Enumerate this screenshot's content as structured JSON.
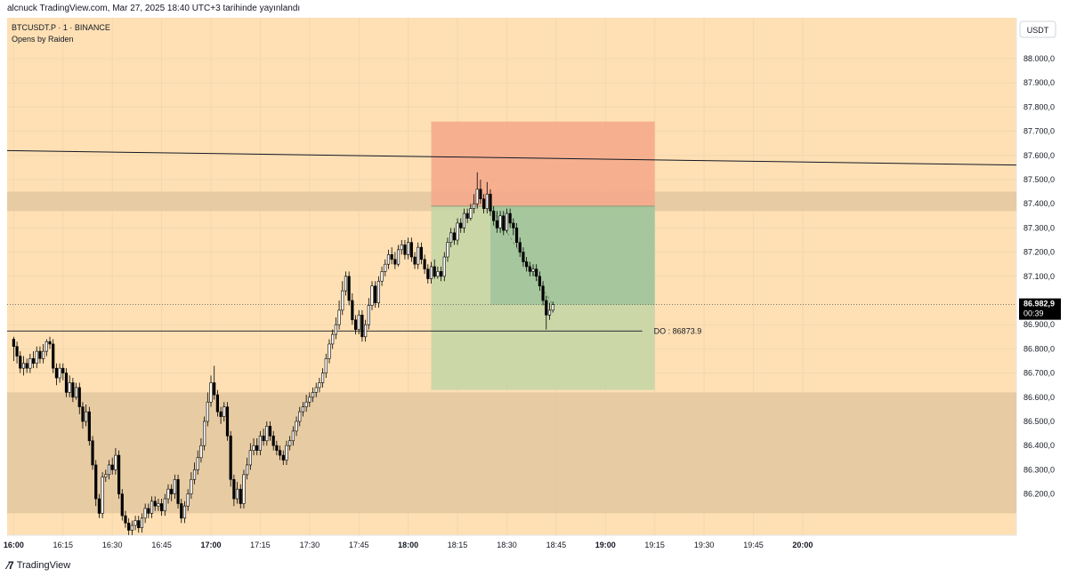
{
  "header": {
    "published": "alcnuck TradingView.com, Mar 27, 2025 18:40 UTC+3 tarihinde yayınlandı"
  },
  "legend": {
    "symbol": "BTCUSDT.P · 1 · BINANCE",
    "indicator": "Opens by Raiden"
  },
  "currency_button": "USDT",
  "footer": {
    "brand": "TradingView"
  },
  "colors": {
    "background": "#fee0b4",
    "zone": "#e4c9a1",
    "stop_zone": "#f4a789",
    "target_zone": "#c3d5a6",
    "target_inner": "#99c29a",
    "bull_body": "#ffffff",
    "bear_body": "#000000",
    "line": "#131722"
  },
  "chart_data": {
    "type": "candlestick",
    "symbol": "BTCUSDT.P",
    "timeframe": "1",
    "exchange": "BINANCE",
    "x_ticks": [
      "16:00",
      "16:15",
      "16:30",
      "16:45",
      "17:00",
      "17:15",
      "17:30",
      "17:45",
      "18:00",
      "18:15",
      "18:30",
      "18:45",
      "19:00",
      "19:15",
      "19:30",
      "19:45",
      "20:00"
    ],
    "y_ticks": [
      "88.000,0",
      "87.900,0",
      "87.800,0",
      "87.700,0",
      "87.600,0",
      "87.500,0",
      "87.400,0",
      "87.300,0",
      "87.200,0",
      "87.100,0",
      "86.900,0",
      "86.800,0",
      "86.700,0",
      "86.600,0",
      "86.500,0",
      "86.400,0",
      "86.300,0",
      "86.200,0"
    ],
    "ylim": [
      86120,
      88080
    ],
    "xlim_minutes": [
      -2,
      305
    ],
    "candles_start_minute": 0,
    "candle_interval_minutes": 1,
    "candles": [
      [
        86840,
        86810,
        86850,
        86750
      ],
      [
        86810,
        86770,
        86830,
        86740
      ],
      [
        86770,
        86720,
        86790,
        86700
      ],
      [
        86720,
        86740,
        86770,
        86690
      ],
      [
        86740,
        86720,
        86760,
        86700
      ],
      [
        86720,
        86760,
        86780,
        86700
      ],
      [
        86760,
        86740,
        86790,
        86720
      ],
      [
        86740,
        86790,
        86810,
        86720
      ],
      [
        86790,
        86760,
        86810,
        86740
      ],
      [
        86760,
        86790,
        86820,
        86740
      ],
      [
        86790,
        86830,
        86840,
        86770
      ],
      [
        86830,
        86820,
        86850,
        86800
      ],
      [
        86820,
        86720,
        86840,
        86700
      ],
      [
        86720,
        86680,
        86740,
        86650
      ],
      [
        86680,
        86720,
        86740,
        86660
      ],
      [
        86720,
        86700,
        86740,
        86670
      ],
      [
        86700,
        86620,
        86720,
        86600
      ],
      [
        86620,
        86660,
        86690,
        86600
      ],
      [
        86660,
        86600,
        86680,
        86580
      ],
      [
        86600,
        86640,
        86660,
        86590
      ],
      [
        86640,
        86560,
        86660,
        86530
      ],
      [
        86560,
        86500,
        86580,
        86470
      ],
      [
        86500,
        86540,
        86570,
        86480
      ],
      [
        86540,
        86420,
        86560,
        86400
      ],
      [
        86420,
        86320,
        86440,
        86300
      ],
      [
        86320,
        86180,
        86340,
        86150
      ],
      [
        86180,
        86120,
        86200,
        86100
      ],
      [
        86120,
        86270,
        86290,
        86100
      ],
      [
        86270,
        86280,
        86300,
        86250
      ],
      [
        86280,
        86320,
        86340,
        86260
      ],
      [
        86320,
        86300,
        86350,
        86280
      ],
      [
        86300,
        86360,
        86390,
        86280
      ],
      [
        86360,
        86200,
        86380,
        86180
      ],
      [
        86200,
        86110,
        86220,
        86090
      ],
      [
        86110,
        86080,
        86130,
        86060
      ],
      [
        86080,
        86050,
        86100,
        86030
      ],
      [
        86050,
        86070,
        86090,
        86030
      ],
      [
        86070,
        86090,
        86110,
        86050
      ],
      [
        86090,
        86060,
        86110,
        86040
      ],
      [
        86060,
        86100,
        86120,
        86040
      ],
      [
        86100,
        86140,
        86160,
        86080
      ],
      [
        86140,
        86120,
        86160,
        86100
      ],
      [
        86120,
        86170,
        86190,
        86100
      ],
      [
        86170,
        86150,
        86190,
        86130
      ],
      [
        86150,
        86160,
        86180,
        86130
      ],
      [
        86160,
        86130,
        86180,
        86110
      ],
      [
        86130,
        86180,
        86200,
        86110
      ],
      [
        86180,
        86220,
        86240,
        86160
      ],
      [
        86220,
        86200,
        86240,
        86170
      ],
      [
        86200,
        86260,
        86280,
        86180
      ],
      [
        86260,
        86160,
        86280,
        86140
      ],
      [
        86160,
        86100,
        86180,
        86080
      ],
      [
        86100,
        86150,
        86170,
        86080
      ],
      [
        86150,
        86200,
        86220,
        86130
      ],
      [
        86200,
        86260,
        86290,
        86180
      ],
      [
        86260,
        86300,
        86330,
        86240
      ],
      [
        86300,
        86350,
        86380,
        86280
      ],
      [
        86350,
        86400,
        86430,
        86330
      ],
      [
        86400,
        86500,
        86520,
        86380
      ],
      [
        86500,
        86580,
        86620,
        86480
      ],
      [
        86580,
        86660,
        86690,
        86560
      ],
      [
        86660,
        86610,
        86730,
        86590
      ],
      [
        86610,
        86540,
        86630,
        86520
      ],
      [
        86540,
        86520,
        86560,
        86490
      ],
      [
        86520,
        86560,
        86580,
        86500
      ],
      [
        86560,
        86440,
        86580,
        86420
      ],
      [
        86440,
        86260,
        86460,
        86230
      ],
      [
        86260,
        86180,
        86280,
        86150
      ],
      [
        86180,
        86220,
        86250,
        86160
      ],
      [
        86220,
        86160,
        86240,
        86140
      ],
      [
        86160,
        86280,
        86300,
        86140
      ],
      [
        86280,
        86320,
        86350,
        86260
      ],
      [
        86320,
        86380,
        86410,
        86300
      ],
      [
        86380,
        86400,
        86430,
        86360
      ],
      [
        86400,
        86380,
        86430,
        86360
      ],
      [
        86380,
        86440,
        86460,
        86360
      ],
      [
        86440,
        86420,
        86470,
        86400
      ],
      [
        86420,
        86480,
        86500,
        86400
      ],
      [
        86480,
        86440,
        86500,
        86420
      ],
      [
        86440,
        86400,
        86460,
        86380
      ],
      [
        86400,
        86380,
        86420,
        86360
      ],
      [
        86380,
        86360,
        86400,
        86340
      ],
      [
        86360,
        86340,
        86380,
        86320
      ],
      [
        86340,
        86400,
        86420,
        86320
      ],
      [
        86400,
        86420,
        86440,
        86380
      ],
      [
        86420,
        86460,
        86480,
        86400
      ],
      [
        86460,
        86500,
        86520,
        86440
      ],
      [
        86500,
        86540,
        86560,
        86480
      ],
      [
        86540,
        86560,
        86580,
        86520
      ],
      [
        86560,
        86580,
        86610,
        86540
      ],
      [
        86580,
        86600,
        86620,
        86560
      ],
      [
        86600,
        86620,
        86640,
        86580
      ],
      [
        86620,
        86640,
        86660,
        86600
      ],
      [
        86640,
        86660,
        86680,
        86620
      ],
      [
        86660,
        86700,
        86720,
        86640
      ],
      [
        86700,
        86760,
        86780,
        86680
      ],
      [
        86760,
        86820,
        86840,
        86740
      ],
      [
        86820,
        86860,
        86880,
        86800
      ],
      [
        86860,
        86900,
        86930,
        86840
      ],
      [
        86900,
        86960,
        87000,
        86880
      ],
      [
        86960,
        87040,
        87080,
        86940
      ],
      [
        87040,
        87100,
        87120,
        87020
      ],
      [
        87100,
        87000,
        87120,
        86980
      ],
      [
        87000,
        86920,
        87030,
        86900
      ],
      [
        86920,
        86880,
        86940,
        86860
      ],
      [
        86880,
        86940,
        86960,
        86860
      ],
      [
        86940,
        86850,
        86960,
        86830
      ],
      [
        86850,
        86900,
        86920,
        86830
      ],
      [
        86900,
        86980,
        87010,
        86880
      ],
      [
        86980,
        87060,
        87080,
        86960
      ],
      [
        87060,
        86990,
        87080,
        86970
      ],
      [
        86990,
        87080,
        87100,
        86970
      ],
      [
        87080,
        87120,
        87140,
        87060
      ],
      [
        87120,
        87150,
        87170,
        87100
      ],
      [
        87150,
        87190,
        87210,
        87130
      ],
      [
        87190,
        87170,
        87220,
        87150
      ],
      [
        87170,
        87150,
        87200,
        87130
      ],
      [
        87150,
        87210,
        87230,
        87140
      ],
      [
        87210,
        87230,
        87250,
        87190
      ],
      [
        87230,
        87190,
        87250,
        87170
      ],
      [
        87190,
        87240,
        87260,
        87170
      ],
      [
        87240,
        87180,
        87260,
        87160
      ],
      [
        87180,
        87150,
        87200,
        87130
      ],
      [
        87150,
        87220,
        87240,
        87130
      ],
      [
        87220,
        87170,
        87240,
        87150
      ],
      [
        87170,
        87130,
        87190,
        87110
      ],
      [
        87130,
        87090,
        87150,
        87070
      ],
      [
        87090,
        87140,
        87160,
        87070
      ],
      [
        87140,
        87100,
        87170,
        87090
      ],
      [
        87100,
        87120,
        87140,
        87090
      ],
      [
        87120,
        87100,
        87140,
        87080
      ],
      [
        87100,
        87180,
        87200,
        87080
      ],
      [
        87180,
        87240,
        87260,
        87160
      ],
      [
        87240,
        87280,
        87300,
        87220
      ],
      [
        87280,
        87250,
        87300,
        87230
      ],
      [
        87250,
        87320,
        87340,
        87230
      ],
      [
        87320,
        87300,
        87340,
        87280
      ],
      [
        87300,
        87360,
        87380,
        87280
      ],
      [
        87360,
        87340,
        87380,
        87320
      ],
      [
        87340,
        87380,
        87400,
        87330
      ],
      [
        87380,
        87400,
        87440,
        87360
      ],
      [
        87400,
        87460,
        87530,
        87380
      ],
      [
        87460,
        87420,
        87500,
        87400
      ],
      [
        87420,
        87380,
        87440,
        87360
      ],
      [
        87380,
        87440,
        87490,
        87360
      ],
      [
        87440,
        87370,
        87460,
        87350
      ],
      [
        87370,
        87330,
        87390,
        87310
      ],
      [
        87330,
        87300,
        87370,
        87280
      ],
      [
        87300,
        87350,
        87370,
        87280
      ],
      [
        87350,
        87290,
        87370,
        87270
      ],
      [
        87290,
        87360,
        87380,
        87280
      ],
      [
        87360,
        87320,
        87380,
        87300
      ],
      [
        87320,
        87300,
        87340,
        87270
      ],
      [
        87300,
        87240,
        87320,
        87220
      ],
      [
        87240,
        87200,
        87260,
        87180
      ],
      [
        87200,
        87160,
        87220,
        87140
      ],
      [
        87160,
        87140,
        87180,
        87120
      ],
      [
        87140,
        87120,
        87160,
        87100
      ],
      [
        87120,
        87130,
        87150,
        87100
      ],
      [
        87130,
        87100,
        87150,
        87080
      ],
      [
        87100,
        87060,
        87120,
        87040
      ],
      [
        87060,
        87000,
        87080,
        86980
      ],
      [
        87000,
        86940,
        87020,
        86880
      ],
      [
        86940,
        86960,
        86990,
        86920
      ],
      [
        86960,
        86983,
        86995,
        86950
      ]
    ],
    "horizontal_lines": [
      {
        "price": 86873.9,
        "label": "DO : 86873.9"
      }
    ],
    "current_price": {
      "label": "86.982,9",
      "countdown": "00:39",
      "price": 86982.9
    },
    "trend_line": {
      "start": {
        "minute": -2,
        "price": 87620
      },
      "end": {
        "minute": 305,
        "price": 87560
      }
    },
    "zones": [
      {
        "price_top": 87450,
        "price_bottom": 87370
      },
      {
        "price_top": 86620,
        "price_bottom": 86120
      }
    ],
    "position": {
      "type": "short",
      "start_minute": 127,
      "end_minute": 195,
      "entry": 87390,
      "stop": 87740,
      "target": 86630,
      "open_minute": 145,
      "current_price": 86982.9
    }
  }
}
